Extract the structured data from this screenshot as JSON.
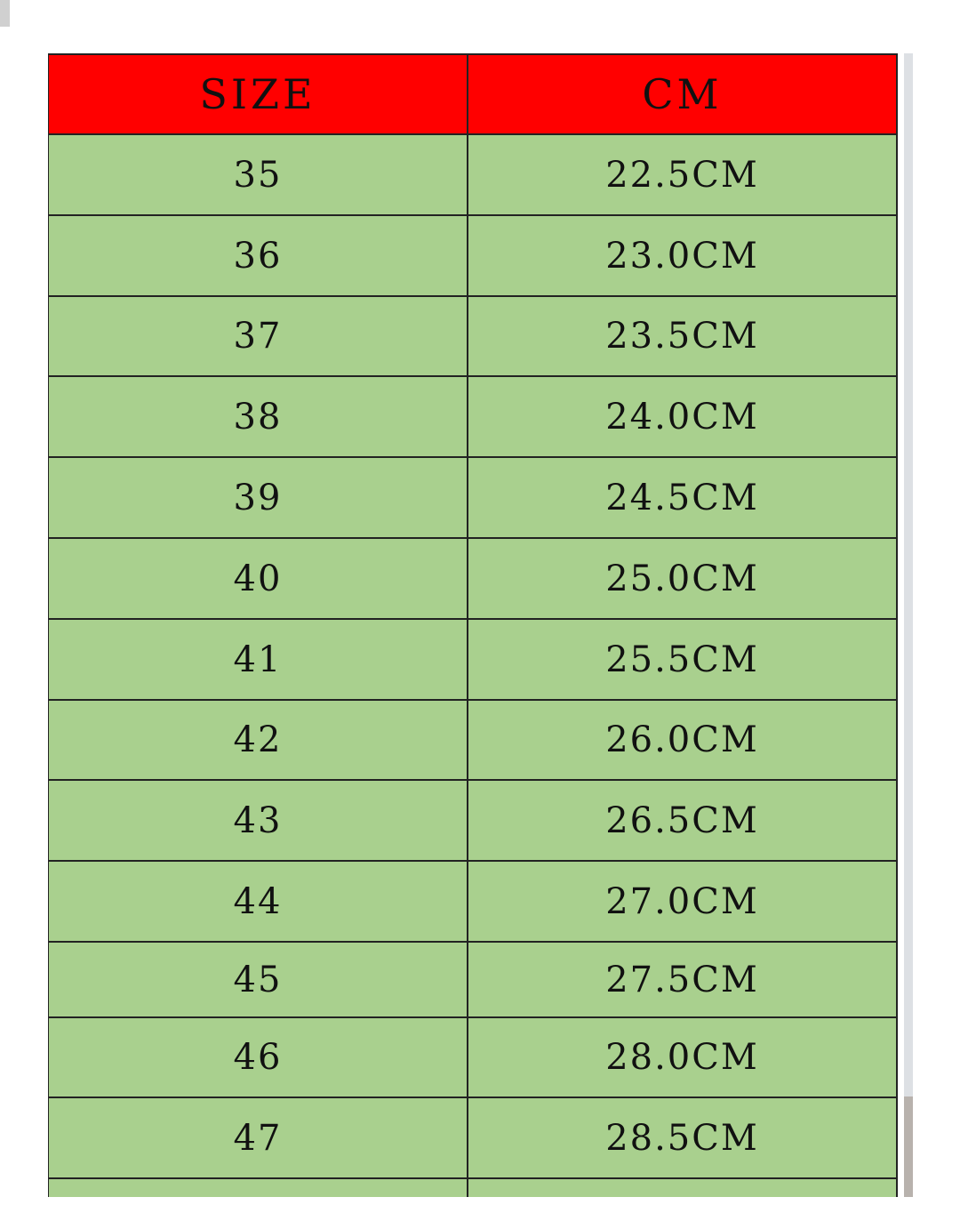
{
  "table": {
    "headers": [
      "SIZE",
      "CM"
    ],
    "header_color": "#ff0000",
    "row_color": "#a9d08e",
    "rows": [
      [
        "35",
        "22.5CM"
      ],
      [
        "36",
        "23.0CM"
      ],
      [
        "37",
        "23.5CM"
      ],
      [
        "38",
        "24.0CM"
      ],
      [
        "39",
        "24.5CM"
      ],
      [
        "40",
        "25.0CM"
      ],
      [
        "41",
        "25.5CM"
      ],
      [
        "42",
        "26.0CM"
      ],
      [
        "43",
        "26.5CM"
      ],
      [
        "44",
        "27.0CM"
      ],
      [
        "45",
        "27.5CM"
      ],
      [
        "46",
        "28.0CM"
      ],
      [
        "47",
        "28.5CM"
      ]
    ]
  }
}
